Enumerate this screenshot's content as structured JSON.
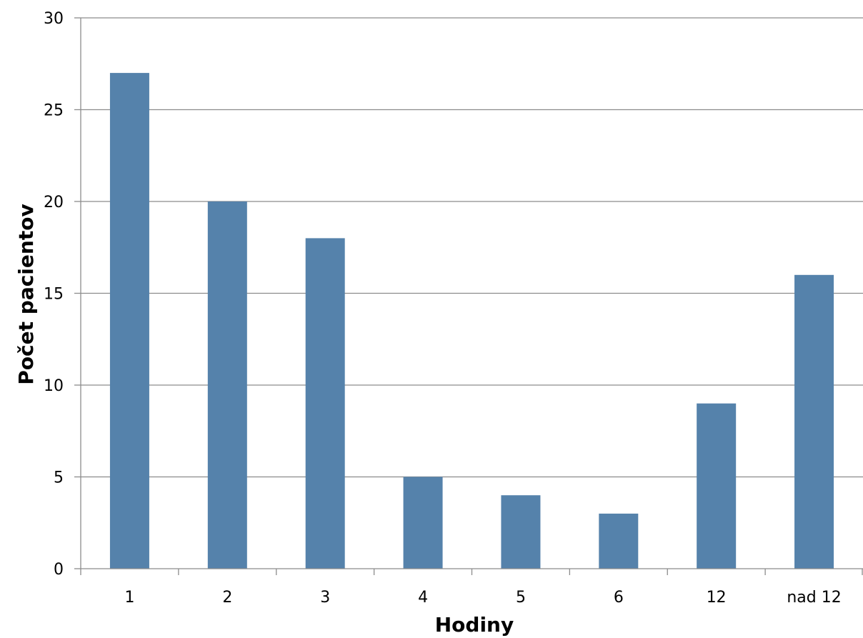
{
  "chart_data": {
    "type": "bar",
    "title": "",
    "xlabel": "Hodiny",
    "ylabel": "Počet pacientov",
    "categories": [
      "1",
      "2",
      "3",
      "4",
      "5",
      "6",
      "12",
      "nad 12"
    ],
    "values": [
      27,
      20,
      18,
      5,
      4,
      3,
      9,
      16
    ],
    "ylim": [
      0,
      30
    ],
    "yticks": [
      "0",
      "5",
      "10",
      "15",
      "20",
      "25",
      "30"
    ],
    "grid": true,
    "legend": "none",
    "colors": {
      "bar": "#5582ab",
      "grid": "#8c8c8c",
      "axis": "#8c8c8c"
    }
  }
}
